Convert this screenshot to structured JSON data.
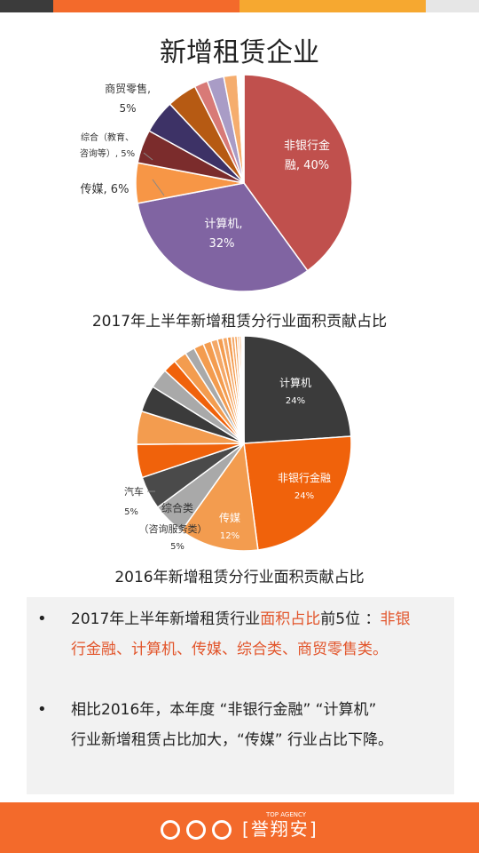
{
  "page": {
    "title": "新增租赁企业"
  },
  "colors": {
    "orange": "#f36a2b",
    "dark": "#3b3b3b",
    "gray": "#a9a9a9"
  },
  "footer": {
    "brand": "誉翔安",
    "brand_en": "TOP AGENCY"
  },
  "chart_data": [
    {
      "type": "pie",
      "title": "2017年上半年新增租赁分行业面积贡献占比",
      "slices": [
        {
          "label": "非银行金融, 40%",
          "value": 40,
          "color": "#c0504d"
        },
        {
          "label": "计算机, 32%",
          "value": 32,
          "color": "#8064a2"
        },
        {
          "label": "传媒, 6%",
          "value": 6,
          "color": "#f79646"
        },
        {
          "label": "综合（教育、咨询等）, 5%",
          "value": 5,
          "color": "#7b2c2c"
        },
        {
          "label": "",
          "value": 5,
          "color": "#3d3266"
        },
        {
          "label": "商贸零售, 5%",
          "value": 4.5,
          "color": "#b65a13"
        },
        {
          "label": "",
          "value": 2,
          "color": "#d87a77"
        },
        {
          "label": "",
          "value": 2.5,
          "color": "#a99cc6"
        },
        {
          "label": "",
          "value": 2,
          "color": "#f5ad6e"
        },
        {
          "label": "",
          "value": 1,
          "color": "#ffffff"
        }
      ]
    },
    {
      "type": "pie",
      "title": "2016年新增租赁分行业面积贡献占比",
      "slices": [
        {
          "label": "计算机 24%",
          "value": 24,
          "color": "#3b3b3b"
        },
        {
          "label": "非银行金融 24%",
          "value": 24,
          "color": "#f0620b"
        },
        {
          "label": "传媒 12%",
          "value": 12,
          "color": "#f39c4f"
        },
        {
          "label": "综合类（咨询服务类） 5%",
          "value": 5,
          "color": "#a9a9a9"
        },
        {
          "label": "",
          "value": 5,
          "color": "#4a4a4a"
        },
        {
          "label": "汽车 5%",
          "value": 5,
          "color": "#f0620b"
        },
        {
          "label": "",
          "value": 5,
          "color": "#f39c4f"
        },
        {
          "label": "",
          "value": 4,
          "color": "#3b3b3b"
        },
        {
          "label": "",
          "value": 3,
          "color": "#a9a9a9"
        },
        {
          "label": "",
          "value": 2,
          "color": "#f0620b"
        },
        {
          "label": "",
          "value": 2,
          "color": "#f39c4f"
        },
        {
          "label": "",
          "value": 1.5,
          "color": "#a9a9a9"
        },
        {
          "label": "",
          "value": 1.5,
          "color": "#f39c4f"
        },
        {
          "label": "",
          "value": 1.2,
          "color": "#f39c4f"
        },
        {
          "label": "",
          "value": 1,
          "color": "#f4a867"
        },
        {
          "label": "",
          "value": 0.8,
          "color": "#f39c4f"
        },
        {
          "label": "",
          "value": 0.7,
          "color": "#f4a867"
        },
        {
          "label": "",
          "value": 0.6,
          "color": "#f39c4f"
        },
        {
          "label": "",
          "value": 0.5,
          "color": "#f4a867"
        },
        {
          "label": "",
          "value": 0.4,
          "color": "#f39c4f"
        },
        {
          "label": "",
          "value": 0.3,
          "color": "#f4a867"
        },
        {
          "label": "",
          "value": 0.3,
          "color": "#f39c4f"
        },
        {
          "label": "",
          "value": 0.2,
          "color": "#f4a867"
        },
        {
          "label": "",
          "value": 0.2,
          "color": "#f39c4f"
        }
      ]
    }
  ],
  "labels17": {
    "fin1": "非银行金",
    "fin2": "融, 40%",
    "comp1": "计算机,",
    "comp2": "32%",
    "media": "传媒, 6%",
    "misc1": "综合（教育、",
    "misc2": "咨询等）, 5%",
    "retail1": "商贸零售,",
    "retail2": "5%"
  },
  "labels16": {
    "comp1": "计算机",
    "comp2": "24%",
    "fin1": "非银行金融",
    "fin2": "24%",
    "media1": "传媒",
    "media2": "12%",
    "auto1": "汽车",
    "auto2": "5%",
    "misc1": "综合类",
    "misc2": "（咨询服务类）",
    "misc3": "5%"
  },
  "bullets": [
    {
      "line1_a": "2017年上半年新增租赁行业",
      "line1_b": "面积占比",
      "line1_c": "前5位 ：",
      "line1_d": "非银",
      "line2": "行金融、计算机、传媒、综合类、商贸零售类。"
    },
    {
      "line1": "相比2016年，本年度 “非银行金融” “计算机”",
      "line2": "行业新增租赁占比加大，“传媒” 行业占比下降。"
    }
  ]
}
